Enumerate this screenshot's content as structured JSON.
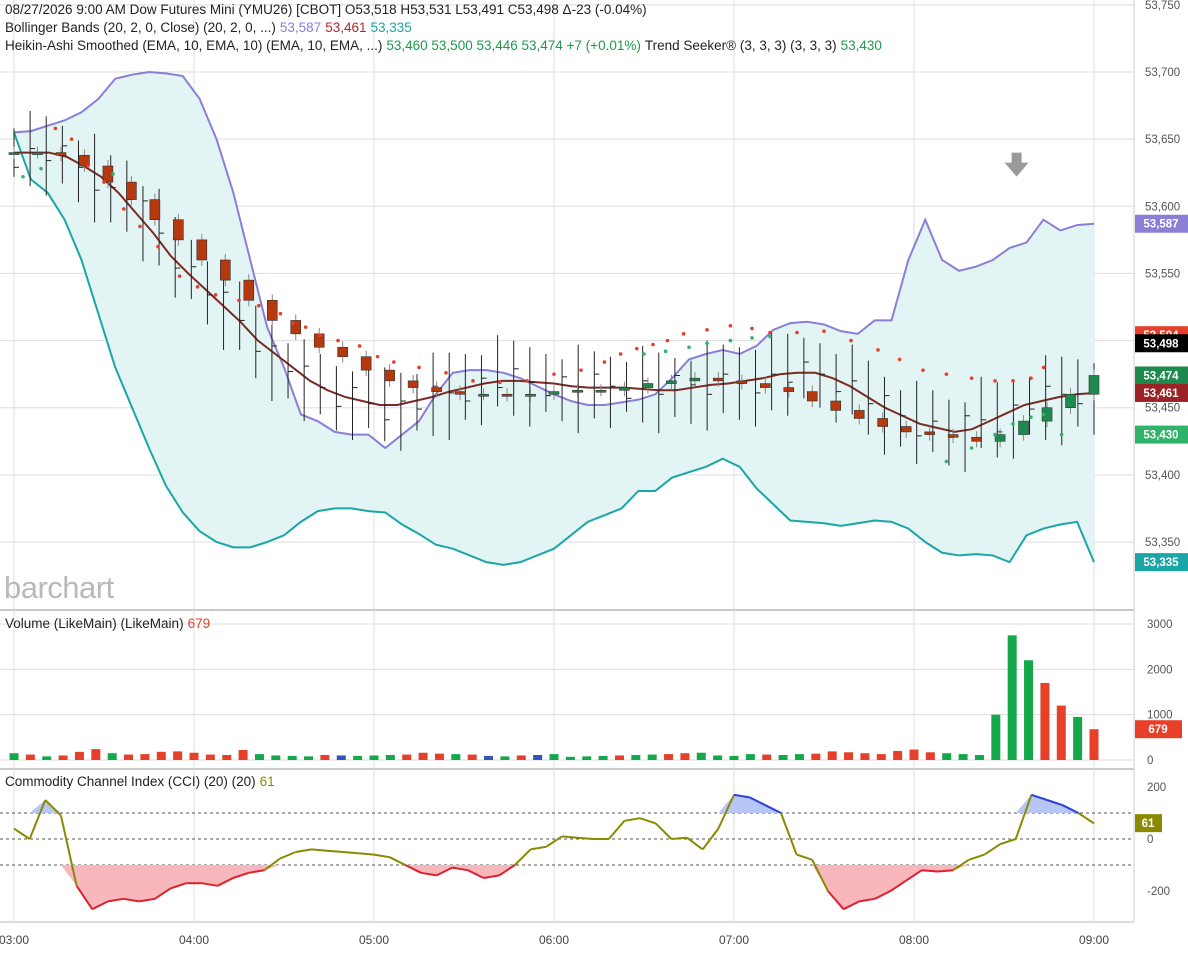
{
  "header": {
    "line1": "08/27/2026  9:00 AM  Dow Futures Mini (YMU26) [CBOT] O53,518 H53,531 L53,491 C53,498 Δ-23 (-0.04%)",
    "bb_label": "Bollinger Bands (20, 2, 0, Close)  (20, 2, 0, ...)",
    "bb_upper": "53,587",
    "bb_mid": "53,461",
    "bb_lower": "53,335",
    "ha_label": "Heikin-Ashi Smoothed (EMA, 10, EMA, 10)  (EMA, 10, EMA, ...)",
    "ha_values": "53,460 53,500 53,446 53,474 +7 (+0.01%)",
    "ts_label": "Trend Seeker® (3, 3, 3)  (3, 3, 3)",
    "ts_value": "53,430"
  },
  "logo": "barchart",
  "colors": {
    "bb_upper": "#8a7ed6",
    "bb_lower": "#1aa6a6",
    "bb_fill": "#e3f4f4",
    "bb_mid": "#7a2a22",
    "ha_up": "#1e8a4e",
    "ha_down": "#b5380e",
    "trend_red": "#e6402a",
    "trend_green": "#2fb36a",
    "vol_up": "#14a84b",
    "vol_down": "#e6402a",
    "vol_neutral": "#2f56b8",
    "cci_line": "#8a8a00",
    "cci_pos_fill": "#b7c6f6",
    "cci_neg_fill": "#f8b6bd",
    "grid": "#dddddd"
  },
  "panels": {
    "volume": {
      "label": "Volume (LikeMain)  (LikeMain)",
      "value": "679"
    },
    "cci": {
      "label": "Commodity Channel Index (CCI) (20)  (20)",
      "value": "61"
    }
  },
  "chart_data": {
    "type": "candlestick",
    "x_ticks": [
      "03:00",
      "04:00",
      "05:00",
      "06:00",
      "07:00",
      "08:00",
      "09:00"
    ],
    "price_axis": {
      "range": [
        53310,
        53750
      ],
      "ticks": [
        53350,
        53400,
        53450,
        53500,
        53550,
        53600,
        53650,
        53700,
        53750
      ]
    },
    "price_ticks": [
      "53,350",
      "53,400",
      "53,450",
      "53,500",
      "53,550",
      "53,600",
      "53,650",
      "53,700",
      "53,750"
    ],
    "price_labels": [
      {
        "text": "53,587",
        "value": 53587,
        "color": "#8a7ed6"
      },
      {
        "text": "53,504",
        "value": 53504,
        "color": "#e6402a"
      },
      {
        "text": "53,498",
        "value": 53498,
        "color": "#000000"
      },
      {
        "text": "53,474",
        "value": 53474,
        "color": "#1e8a4e"
      },
      {
        "text": "53,461",
        "value": 53461,
        "color": "#9b2226"
      },
      {
        "text": "53,430",
        "value": 53430,
        "color": "#2fb36a"
      },
      {
        "text": "53,335",
        "value": 53335,
        "color": "#1aa6a6"
      }
    ],
    "bb_upper": [
      53655,
      53656,
      53660,
      53664,
      53670,
      53680,
      53695,
      53698,
      53700,
      53699,
      53697,
      53680,
      53650,
      53610,
      53560,
      53510,
      53480,
      53445,
      53440,
      53432,
      53430,
      53430,
      53420,
      53430,
      53440,
      53460,
      53476,
      53478,
      53478,
      53476,
      53472,
      53466,
      53460,
      53455,
      53452,
      53452,
      53454,
      53456,
      53460,
      53472,
      53486,
      53490,
      53493,
      53490,
      53496,
      53508,
      53513,
      53514,
      53512,
      53507,
      53505,
      53515,
      53515,
      53560,
      53590,
      53560,
      53552,
      53555,
      53560,
      53569,
      53573,
      53590,
      53582,
      53586,
      53587
    ],
    "bb_lower": [
      53655,
      53620,
      53610,
      53590,
      53560,
      53520,
      53480,
      53450,
      53420,
      53392,
      53372,
      53358,
      53350,
      53346,
      53346,
      53350,
      53355,
      53365,
      53373,
      53375,
      53375,
      53373,
      53372,
      53363,
      53356,
      53348,
      53345,
      53340,
      53335,
      53333,
      53335,
      53340,
      53345,
      53355,
      53365,
      53370,
      53375,
      53388,
      53388,
      53398,
      53402,
      53406,
      53412,
      53406,
      53390,
      53378,
      53366,
      53365,
      53364,
      53362,
      53364,
      53366,
      53365,
      53360,
      53350,
      53342,
      53340,
      53341,
      53340,
      53335,
      53355,
      53360,
      53363,
      53365,
      53335
    ],
    "bb_mid": [
      53640,
      53640,
      53640,
      53637,
      53630,
      53622,
      53610,
      53595,
      53580,
      53563,
      53550,
      53538,
      53526,
      53514,
      53500,
      53490,
      53480,
      53470,
      53463,
      53458,
      53455,
      53452,
      53452,
      53455,
      53458,
      53462,
      53465,
      53468,
      53470,
      53470,
      53469,
      53468,
      53466,
      53465,
      53465,
      53465,
      53464,
      53463,
      53463,
      53465,
      53467,
      53468,
      53470,
      53472,
      53475,
      53476,
      53476,
      53472,
      53466,
      53458,
      53450,
      53444,
      53438,
      53435,
      53432,
      53434,
      53440,
      53446,
      53452,
      53455,
      53458,
      53460,
      53461
    ],
    "ha_open": [
      53640,
      53640,
      53640,
      53638,
      53630,
      53618,
      53605,
      53590,
      53575,
      53560,
      53545,
      53530,
      53515,
      53505,
      53495,
      53488,
      53478,
      53470,
      53465,
      53462,
      53460,
      53460,
      53459,
      53460,
      53462,
      53463,
      53463,
      53465,
      53468,
      53470,
      53472,
      53470,
      53468,
      53465,
      53462,
      53455,
      53448,
      53442,
      53436,
      53432,
      53430,
      53428,
      53425,
      53430,
      53440,
      53450,
      53460
    ],
    "ha_close": [
      53640,
      53640,
      53638,
      53630,
      53618,
      53605,
      53590,
      53575,
      53560,
      53545,
      53530,
      53515,
      53505,
      53495,
      53488,
      53478,
      53470,
      53465,
      53462,
      53460,
      53460,
      53459,
      53460,
      53462,
      53463,
      53463,
      53465,
      53468,
      53470,
      53472,
      53470,
      53468,
      53465,
      53462,
      53455,
      53448,
      53442,
      53436,
      53432,
      53430,
      53428,
      53425,
      53430,
      53440,
      53450,
      53460,
      53474
    ],
    "trend_seeker_red": [
      [
        0.23,
        53658
      ],
      [
        0.32,
        53650
      ],
      [
        0.41,
        53630
      ],
      [
        0.5,
        53618
      ],
      [
        0.61,
        53598
      ],
      [
        0.7,
        53585
      ],
      [
        0.8,
        53570
      ],
      [
        0.92,
        53548
      ],
      [
        1.02,
        53540
      ],
      [
        1.12,
        53534
      ],
      [
        1.25,
        53530
      ],
      [
        1.36,
        53526
      ],
      [
        1.48,
        53520
      ],
      [
        1.55,
        53513
      ],
      [
        1.62,
        53510
      ],
      [
        1.7,
        53504
      ],
      [
        1.8,
        53500
      ],
      [
        1.92,
        53496
      ],
      [
        2.02,
        53488
      ],
      [
        2.11,
        53484
      ],
      [
        2.25,
        53480
      ],
      [
        2.4,
        53476
      ],
      [
        2.55,
        53470
      ],
      [
        2.7,
        53469
      ],
      [
        2.85,
        53470
      ],
      [
        3.0,
        53475
      ],
      [
        3.15,
        53478
      ],
      [
        3.28,
        53484
      ],
      [
        3.37,
        53490
      ],
      [
        3.46,
        53494
      ],
      [
        3.55,
        53497
      ],
      [
        3.63,
        53500
      ],
      [
        3.72,
        53505
      ],
      [
        3.85,
        53508
      ],
      [
        3.98,
        53511
      ],
      [
        4.1,
        53509
      ],
      [
        4.2,
        53506
      ],
      [
        4.35,
        53506
      ],
      [
        4.5,
        53507
      ],
      [
        4.65,
        53500
      ],
      [
        4.8,
        53493
      ],
      [
        4.92,
        53486
      ],
      [
        5.05,
        53478
      ],
      [
        5.18,
        53475
      ],
      [
        5.32,
        53472
      ],
      [
        5.45,
        53470
      ],
      [
        5.55,
        53470
      ],
      [
        5.65,
        53472
      ],
      [
        5.72,
        53480
      ]
    ],
    "trend_seeker_green": [
      [
        0.05,
        53622
      ],
      [
        0.15,
        53628
      ],
      [
        0.55,
        53624
      ],
      [
        3.5,
        53490
      ],
      [
        3.62,
        53492
      ],
      [
        3.75,
        53495
      ],
      [
        3.85,
        53498
      ],
      [
        3.98,
        53500
      ],
      [
        4.1,
        53502
      ],
      [
        4.2,
        53503
      ],
      [
        5.18,
        53410
      ],
      [
        5.32,
        53420
      ],
      [
        5.45,
        53430
      ],
      [
        5.55,
        53438
      ],
      [
        5.65,
        53443
      ],
      [
        5.72,
        53445
      ],
      [
        5.82,
        53430
      ]
    ],
    "volume_axis": {
      "range": [
        0,
        3000
      ],
      "ticks": [
        0,
        1000,
        2000,
        3000
      ]
    },
    "volume_ticks": [
      "0",
      "1000",
      "2000",
      "3000"
    ],
    "volume": [
      150,
      120,
      80,
      100,
      180,
      240,
      150,
      120,
      130,
      180,
      190,
      160,
      120,
      110,
      220,
      130,
      100,
      90,
      80,
      110,
      100,
      90,
      100,
      110,
      120,
      160,
      140,
      130,
      120,
      90,
      80,
      100,
      110,
      130,
      70,
      80,
      90,
      100,
      110,
      120,
      130,
      150,
      160,
      100,
      90,
      130,
      120,
      110,
      130,
      140,
      190,
      170,
      150,
      130,
      200,
      230,
      170,
      150,
      130,
      110,
      1000,
      2750,
      2200,
      1700,
      1200,
      950,
      679
    ],
    "volume_dir": [
      "u",
      "d",
      "u",
      "d",
      "d",
      "d",
      "u",
      "d",
      "d",
      "d",
      "d",
      "d",
      "d",
      "d",
      "d",
      "u",
      "u",
      "u",
      "u",
      "d",
      "n",
      "u",
      "u",
      "u",
      "d",
      "d",
      "d",
      "u",
      "d",
      "n",
      "u",
      "d",
      "n",
      "u",
      "u",
      "u",
      "u",
      "d",
      "u",
      "u",
      "d",
      "d",
      "u",
      "u",
      "u",
      "u",
      "d",
      "u",
      "u",
      "d",
      "d",
      "d",
      "d",
      "d",
      "d",
      "d",
      "d",
      "u",
      "u",
      "u",
      "u",
      "u",
      "u",
      "d",
      "d",
      "u",
      "d"
    ],
    "cci_axis": {
      "range": [
        -300,
        300
      ],
      "ticks": [
        -200,
        0,
        200
      ]
    },
    "cci_ticks": [
      "-200",
      "0",
      "200"
    ],
    "cci": [
      40,
      0,
      150,
      90,
      -180,
      -270,
      -240,
      -230,
      -240,
      -230,
      -190,
      -170,
      -170,
      -180,
      -150,
      -130,
      -120,
      -75,
      -50,
      -40,
      -45,
      -50,
      -55,
      -60,
      -70,
      -100,
      -130,
      -140,
      -110,
      -120,
      -150,
      -140,
      -100,
      -40,
      -30,
      10,
      5,
      0,
      0,
      70,
      80,
      60,
      0,
      5,
      -40,
      40,
      170,
      160,
      130,
      100,
      -60,
      -80,
      -200,
      -270,
      -240,
      -230,
      -200,
      -160,
      -120,
      -125,
      -120,
      -80,
      -60,
      -20,
      0,
      170,
      150,
      130,
      100,
      60
    ],
    "cci_levels": [
      100,
      0,
      -100
    ]
  }
}
